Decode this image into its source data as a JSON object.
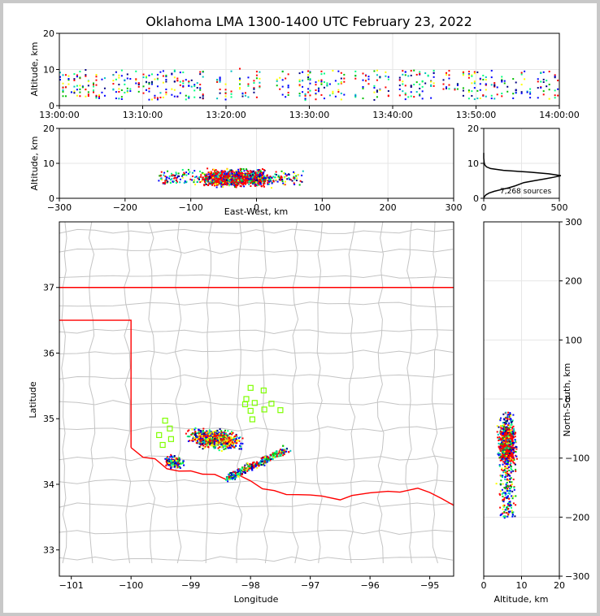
{
  "title": "Oklahoma LMA 1300-1400 UTC February 23, 2022",
  "colors": {
    "state_border": "#ff0000",
    "county": "#c4c4c4",
    "stations": "#7fff00",
    "grid": "#e6e6e6"
  },
  "source_count_label": "7,268 sources",
  "chart_data": [
    {
      "id": "time-altitude",
      "type": "scatter",
      "ylabel": "Altitude, km",
      "ylim": [
        0,
        20
      ],
      "yticks": [
        "0",
        "10",
        "20"
      ],
      "xlim_minutes": [
        0,
        60
      ],
      "xticks": [
        "13:00:00",
        "13:10:00",
        "13:20:00",
        "13:30:00",
        "13:40:00",
        "13:50:00",
        "14:00:00"
      ],
      "activity_windows_minutes": [
        [
          0,
          3.5
        ],
        [
          4,
          9.5
        ],
        [
          10,
          17.5
        ],
        [
          18.5,
          24
        ],
        [
          25,
          30
        ],
        [
          30,
          35.5
        ],
        [
          36,
          45.5
        ],
        [
          46,
          52.5
        ],
        [
          53,
          56.5
        ],
        [
          57,
          60
        ]
      ],
      "altitude_band_km": [
        2,
        10
      ]
    },
    {
      "id": "east-west-altitude",
      "type": "scatter",
      "xlabel": "East-West, km",
      "ylabel": "Altitude, km",
      "xlim": [
        -300,
        300
      ],
      "ylim": [
        0,
        20
      ],
      "xticks": [
        "−300",
        "−200",
        "−100",
        "0",
        "100",
        "200",
        "300"
      ],
      "yticks": [
        "0",
        "10",
        "20"
      ],
      "core_x_km": [
        -75,
        10
      ],
      "extent_x_km": [
        -150,
        70
      ],
      "altitude_band_km": [
        2,
        11
      ]
    },
    {
      "id": "altitude-histogram",
      "type": "line",
      "xlim": [
        0,
        500
      ],
      "ylim": [
        0,
        20
      ],
      "xticks": [
        "0",
        "500"
      ],
      "yticks": [
        "0",
        "10",
        "20"
      ],
      "altitude_km": [
        0,
        0.5,
        1,
        1.5,
        2,
        2.5,
        3,
        3.5,
        4,
        4.5,
        5,
        5.5,
        6,
        6.5,
        7,
        7.5,
        8,
        8.5,
        9,
        9.5,
        10,
        10.5,
        11,
        11.5,
        12,
        13
      ],
      "source_counts": [
        0,
        5,
        15,
        35,
        70,
        115,
        165,
        205,
        235,
        265,
        330,
        400,
        460,
        510,
        430,
        300,
        130,
        45,
        18,
        8,
        4,
        2,
        1,
        0,
        0,
        0
      ]
    },
    {
      "id": "plan-view",
      "type": "scatter",
      "xlabel": "Longitude",
      "ylabel": "Latitude",
      "xlim": [
        -101.2,
        -94.6
      ],
      "ylim": [
        32.6,
        38
      ],
      "xticks": [
        "−101",
        "−100",
        "−99",
        "−98",
        "−97",
        "−96",
        "−95"
      ],
      "yticks": [
        "33",
        "34",
        "35",
        "36",
        "37"
      ],
      "core_lon_lat": [
        -98.6,
        34.7
      ],
      "station_lon_lat": [
        [
          -98.0,
          35.47
        ],
        [
          -97.78,
          35.43
        ],
        [
          -98.07,
          35.3
        ],
        [
          -97.93,
          35.24
        ],
        [
          -98.09,
          35.22
        ],
        [
          -97.65,
          35.23
        ],
        [
          -97.77,
          35.14
        ],
        [
          -97.5,
          35.13
        ],
        [
          -98.0,
          35.12
        ],
        [
          -97.97,
          34.99
        ],
        [
          -99.43,
          34.97
        ],
        [
          -99.35,
          34.85
        ],
        [
          -99.53,
          34.75
        ],
        [
          -99.33,
          34.69
        ],
        [
          -99.47,
          34.6
        ]
      ]
    },
    {
      "id": "altitude-north-south",
      "type": "scatter",
      "xlabel": "Altitude, km",
      "ylabel": "North-South, km",
      "xlim": [
        0,
        20
      ],
      "ylim": [
        -300,
        300
      ],
      "xticks": [
        "0",
        "10",
        "20"
      ],
      "yticks": [
        "−300",
        "−200",
        "−100",
        "0",
        "100",
        "200",
        "300"
      ],
      "core_y_km": [
        -100,
        -50
      ],
      "extent_y_km": [
        -200,
        -20
      ],
      "altitude_band_km": [
        2,
        11
      ]
    }
  ]
}
